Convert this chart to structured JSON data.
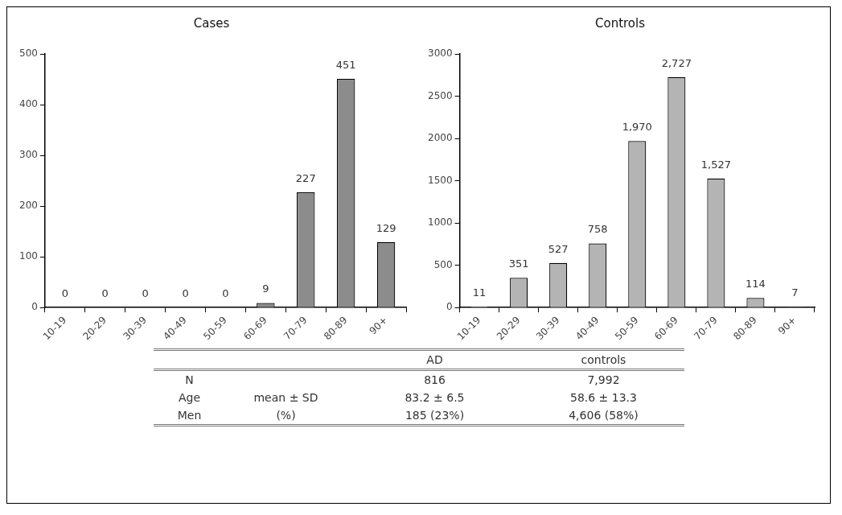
{
  "chart_data": [
    {
      "type": "bar",
      "title": "Cases",
      "categories": [
        "10-19",
        "20-29",
        "30-39",
        "40-49",
        "50-59",
        "60-69",
        "70-79",
        "80-89",
        "90+"
      ],
      "values": [
        0,
        0,
        0,
        0,
        0,
        9,
        227,
        451,
        129
      ],
      "color": "#8c8c8c",
      "ylim": [
        0,
        500
      ],
      "yticks": [
        0,
        100,
        200,
        300,
        400,
        500
      ],
      "data_labels": true,
      "grid": false,
      "legend": false
    },
    {
      "type": "bar",
      "title": "Controls",
      "categories": [
        "10-19",
        "20-29",
        "30-39",
        "40-49",
        "50-59",
        "60-69",
        "70-79",
        "80-89",
        "90+"
      ],
      "values": [
        11,
        351,
        527,
        758,
        1970,
        2727,
        1527,
        114,
        7
      ],
      "value_labels": [
        "11",
        "351",
        "527",
        "758",
        "1,970",
        "2,727",
        "1,527",
        "114",
        "7"
      ],
      "color": "#b4b4b4",
      "ylim": [
        0,
        3000
      ],
      "yticks": [
        0,
        500,
        1000,
        1500,
        2000,
        2500,
        3000
      ],
      "grid": false,
      "legend": false
    },
    {
      "type": "other",
      "annotations": [
        "AD",
        "controls",
        "N",
        "816",
        "7,992",
        "Age",
        "mean ± SD",
        "83.2 ± 6.5",
        "58.6 ± 13.3",
        "Men",
        "(%)",
        "185 (23%)",
        "4,606 (58%)"
      ]
    }
  ]
}
